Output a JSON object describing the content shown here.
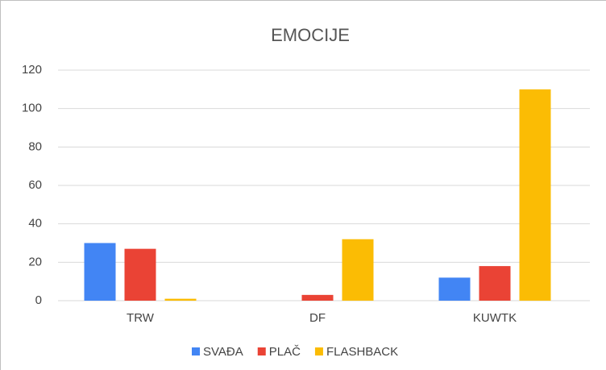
{
  "chart_data": {
    "type": "bar",
    "title": "EMOCIJE",
    "categories": [
      "TRW",
      "DF",
      "KUWTK"
    ],
    "series": [
      {
        "name": "SVAĐA",
        "color": "#4285f4",
        "values": [
          30,
          0,
          12
        ]
      },
      {
        "name": "PLAČ",
        "color": "#ea4335",
        "values": [
          27,
          3,
          18
        ]
      },
      {
        "name": "FLASHBACK",
        "color": "#fbbc04",
        "values": [
          1,
          32,
          110
        ]
      }
    ],
    "ylim": [
      0,
      120
    ],
    "yticks": [
      0,
      20,
      40,
      60,
      80,
      100,
      120
    ],
    "grid": true,
    "legend": "bottom"
  }
}
